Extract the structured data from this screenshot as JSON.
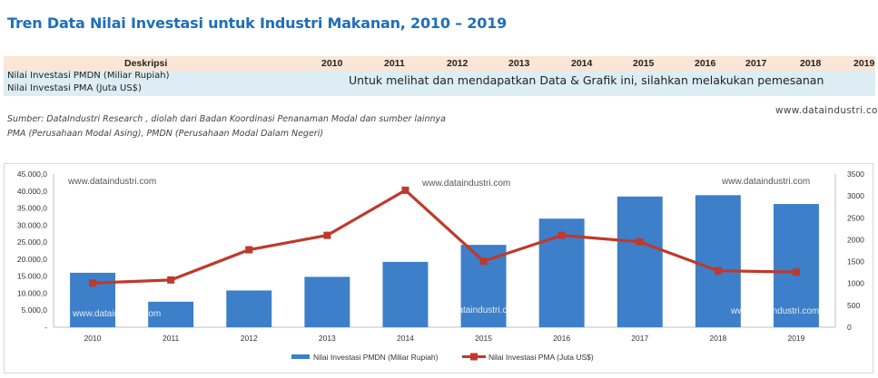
{
  "title": "Tren Data Nilai Investasi untuk Industri Makanan, 2010 – 2019",
  "table": {
    "header_label": "Deskripsi",
    "years": [
      "2010",
      "2011",
      "2012",
      "2013",
      "2014",
      "2015",
      "2016",
      "2017",
      "2018",
      "2019"
    ],
    "rows": [
      "Nilai Investasi PMDN (Miliar Rupiah)",
      "Nilai Investasi PMA (Juta US$)"
    ],
    "message": "Untuk melihat dan mendapatkan Data & Grafik ini, silahkan melakukan pemesanan"
  },
  "source_lines": [
    "Sumber: DataIndustri Research , diolah dari Badan Koordinasi Penanaman Modal dan sumber lainnya",
    "PMA (Perusahaan Modal Asing), PMDN (Perusahaan Modal Dalam Negeri)"
  ],
  "website": "www.dataindustri.com",
  "watermark": "www.dataindustri.com",
  "colors": {
    "bar": "#3d7fc9",
    "line": "#c0392b",
    "title": "#1f6fb8"
  },
  "chart_data": {
    "type": "bar",
    "categories": [
      "2010",
      "2011",
      "2012",
      "2013",
      "2014",
      "2015",
      "2016",
      "2017",
      "2018",
      "2019"
    ],
    "series": [
      {
        "name": "Nilai Investasi PMDN (Miliar Rupiah)",
        "type": "bar",
        "axis": "left",
        "values": [
          16000,
          7500,
          10800,
          14800,
          19200,
          24200,
          31900,
          38400,
          38800,
          36200
        ]
      },
      {
        "name": "Nilai Investasi PMA (Juta US$)",
        "type": "line",
        "axis": "right",
        "values": [
          1010,
          1080,
          1770,
          2100,
          3130,
          1510,
          2100,
          1950,
          1290,
          1260
        ]
      }
    ],
    "left_ticks": [
      "-",
      "5.000,0",
      "10.000,0",
      "15.000,0",
      "20.000,0",
      "25.000,0",
      "30.000,0",
      "35.000,0",
      "40.000,0",
      "45.000,0"
    ],
    "right_ticks": [
      "0",
      "500",
      "1000",
      "1500",
      "2000",
      "2500",
      "3000",
      "3500"
    ],
    "ylim_left": [
      0,
      45000
    ],
    "ylim_right": [
      0,
      3500
    ],
    "legend_position": "bottom",
    "grid": false
  }
}
